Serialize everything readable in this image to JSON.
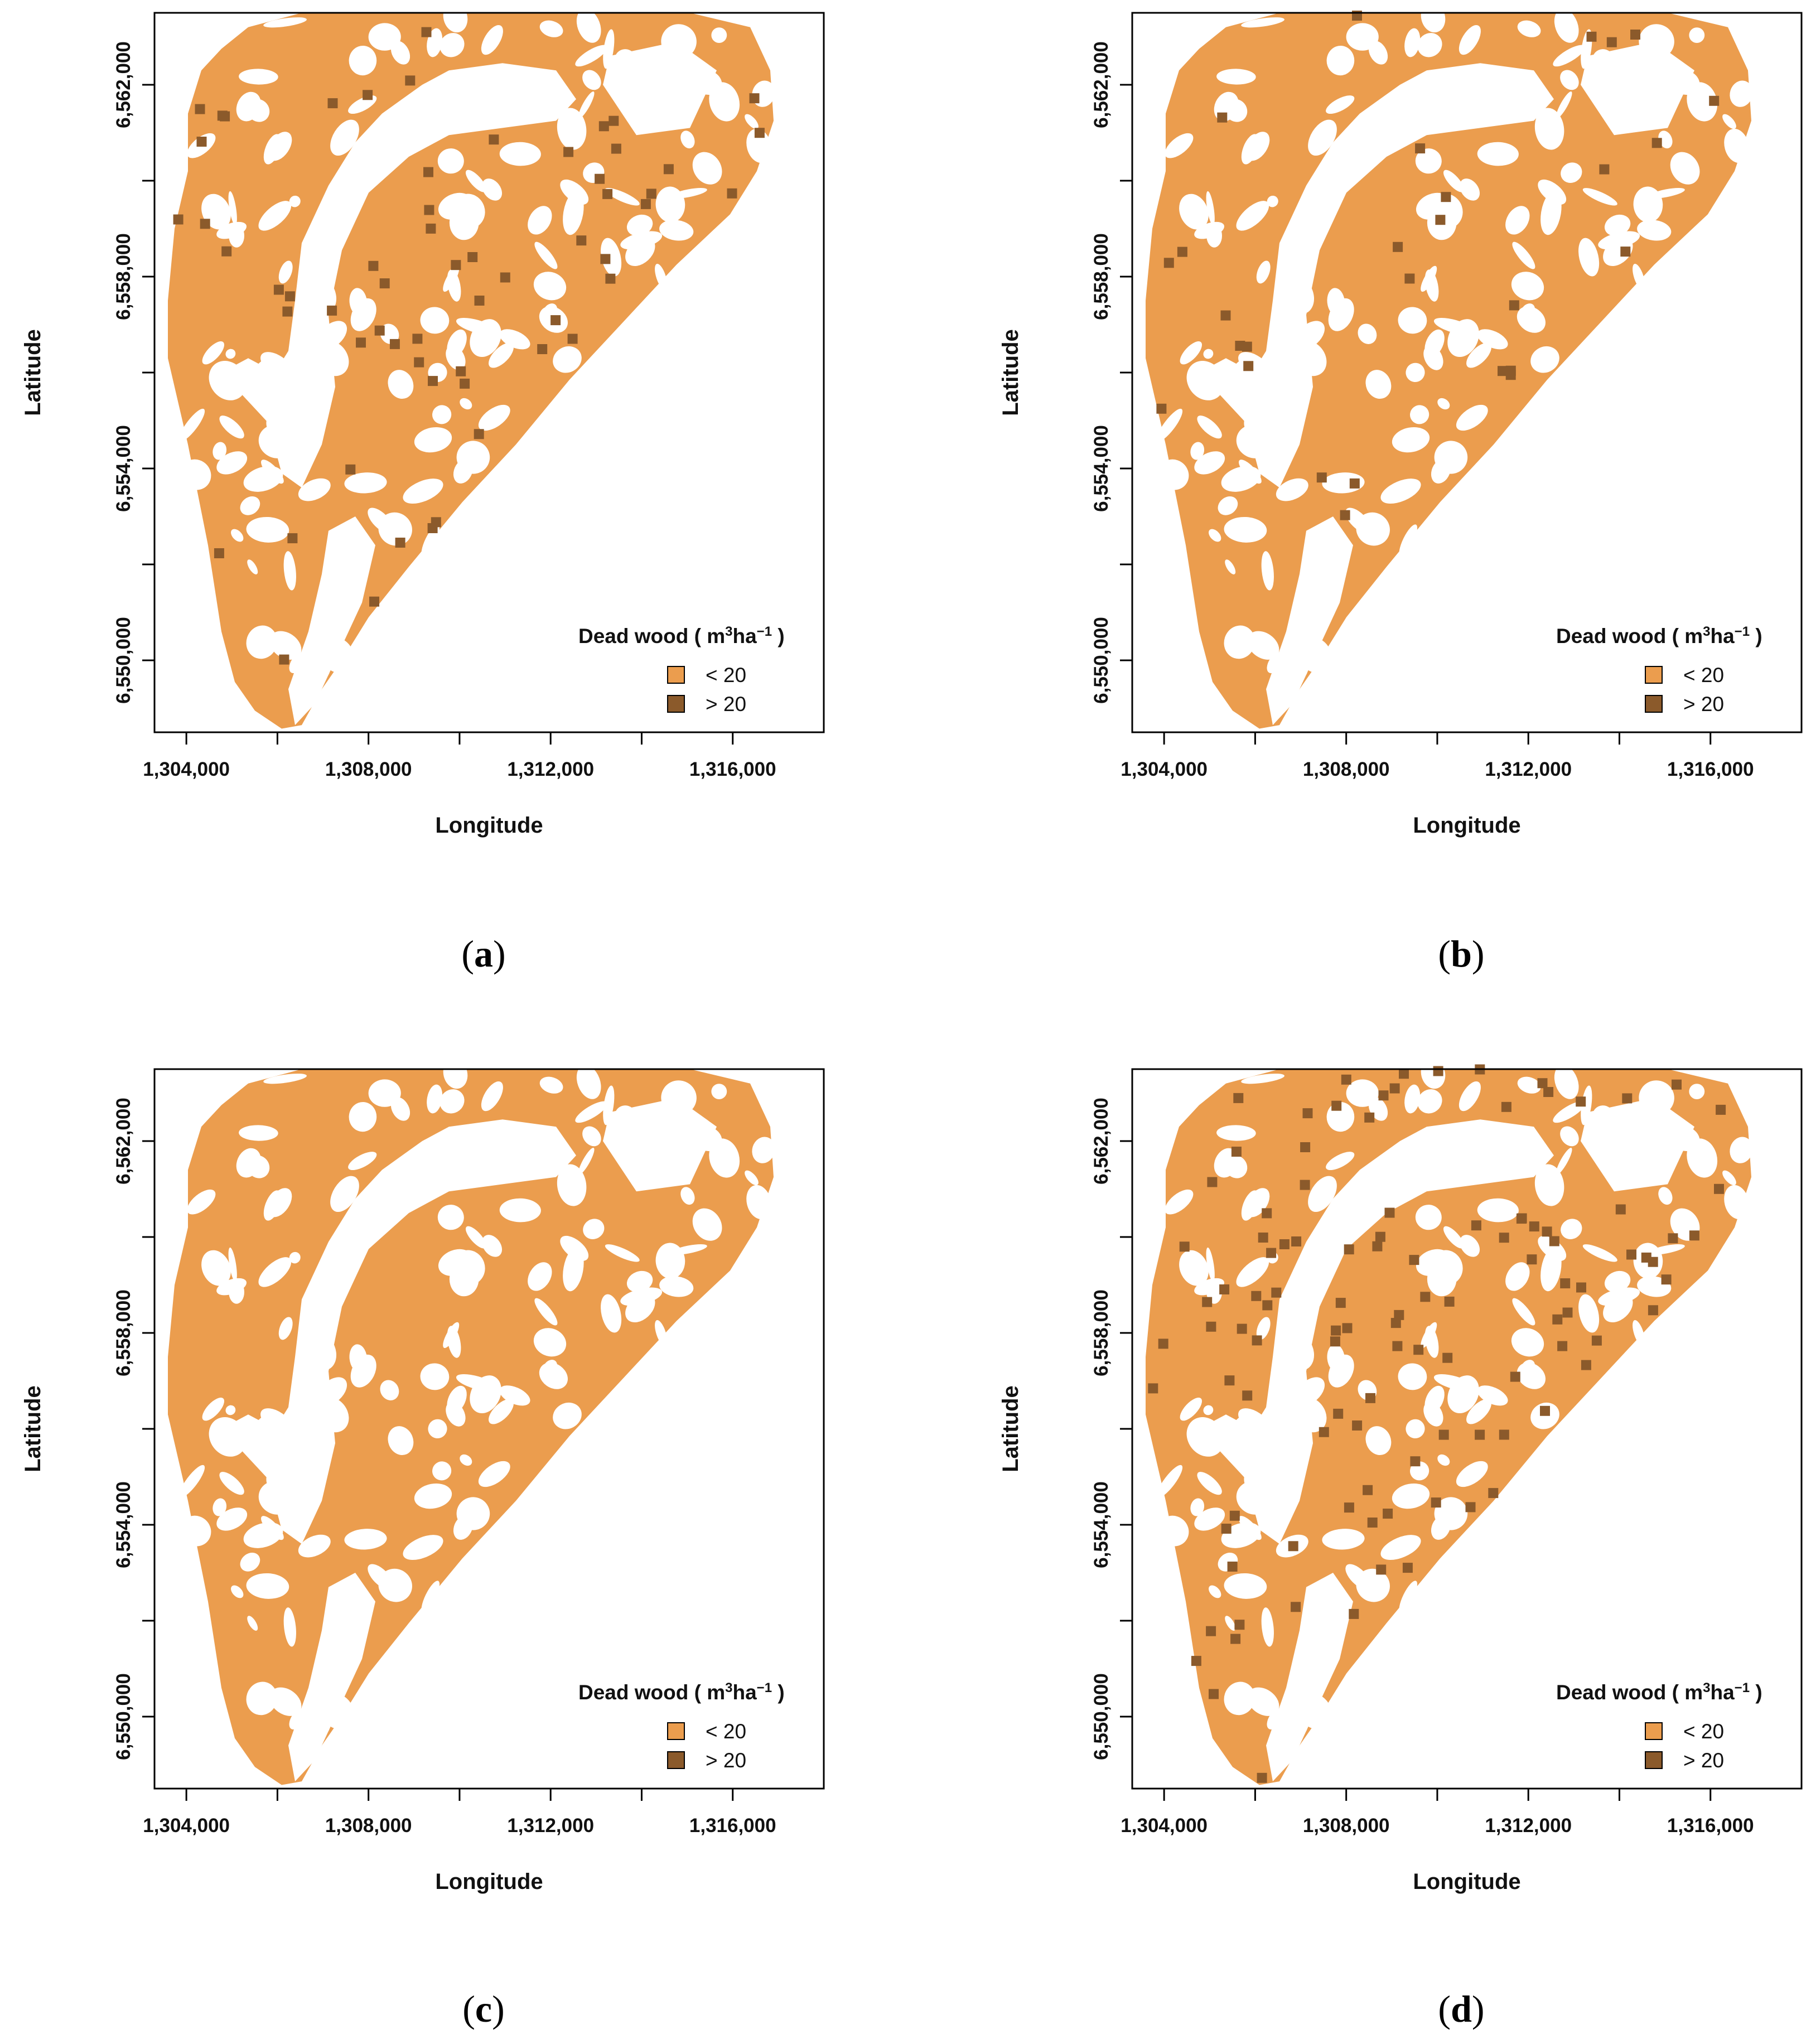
{
  "figure": {
    "colors": {
      "low": "#EB9D4E",
      "high": "#8B5A2B",
      "water": "#FFFFFF",
      "frame": "#000000"
    },
    "panels": [
      {
        "id": "a",
        "caption_letter": "a",
        "dense_patches": 60
      },
      {
        "id": "b",
        "caption_letter": "b",
        "dense_patches": 28
      },
      {
        "id": "c",
        "caption_letter": "c",
        "dense_patches": 0
      },
      {
        "id": "d",
        "caption_letter": "d",
        "dense_patches": 110
      }
    ],
    "axes": {
      "xlabel": "Longitude",
      "ylabel": "Latitude",
      "x_range": [
        1303300,
        1318000
      ],
      "y_range": [
        6548500,
        6563500
      ],
      "x_ticks": [
        1304000,
        1306000,
        1308000,
        1310000,
        1312000,
        1314000,
        1316000
      ],
      "x_tick_labels": [
        "1,304,000",
        "",
        "1,308,000",
        "",
        "1,312,000",
        "",
        "1,316,000"
      ],
      "y_ticks": [
        6550000,
        6552000,
        6554000,
        6556000,
        6558000,
        6560000,
        6562000
      ],
      "y_tick_labels": [
        "6,550,000",
        "",
        "6,554,000",
        "",
        "6,558,000",
        "",
        "6,562,000"
      ]
    },
    "legend": {
      "title_prefix": "Dead wood ( m",
      "title_sup1": "3",
      "title_mid": "ha",
      "title_sup2": "−1",
      "title_suffix": ")",
      "items": [
        {
          "label": "< 20",
          "color": "#EB9D4E"
        },
        {
          "label": "> 20",
          "color": "#8B5A2B"
        }
      ]
    }
  }
}
